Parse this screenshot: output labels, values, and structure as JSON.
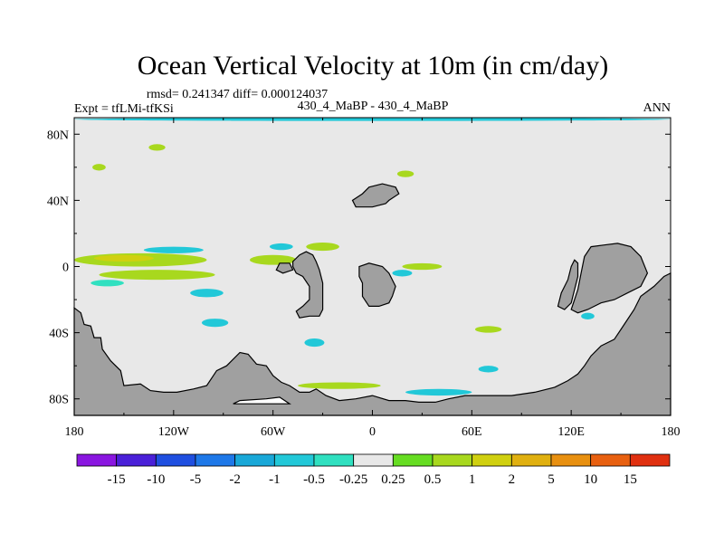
{
  "chart_data": {
    "type": "heatmap",
    "projection": "cylindrical-equidistant",
    "title": "Ocean Vertical Velocity at 10m (in cm/day)",
    "stats_text": "rmsd= 0.241347 diff= 0.000124037",
    "left_label": "Expt = tfLMi-tfKSi",
    "center_label": "430_4_MaBP - 430_4_MaBP",
    "right_label": "ANN",
    "lon_range": [
      -180,
      180
    ],
    "lat_range": [
      -90,
      90
    ],
    "x_ticks": [
      {
        "value": -180,
        "label": "180"
      },
      {
        "value": -120,
        "label": "120W"
      },
      {
        "value": -60,
        "label": "60W"
      },
      {
        "value": 0,
        "label": "0"
      },
      {
        "value": 60,
        "label": "60E"
      },
      {
        "value": 120,
        "label": "120E"
      },
      {
        "value": 180,
        "label": "180"
      }
    ],
    "y_ticks": [
      {
        "value": 80,
        "label": "80N"
      },
      {
        "value": 40,
        "label": "40N"
      },
      {
        "value": 0,
        "label": "0"
      },
      {
        "value": -40,
        "label": "40S"
      },
      {
        "value": -80,
        "label": "80S"
      }
    ],
    "background_class": "-0.25 to 0.25",
    "land_color": "#a0a0a0",
    "colorbar": {
      "colors": [
        "#8a16e0",
        "#4a20d8",
        "#1f4fe0",
        "#1e78e8",
        "#19a8d8",
        "#22c8d8",
        "#30e0c0",
        "#e8e8e8",
        "#66dd22",
        "#a8d81e",
        "#d0d010",
        "#e0b010",
        "#e89010",
        "#e86010",
        "#e03010"
      ],
      "labels": [
        "-15",
        "-10",
        "-5",
        "-2",
        "-1",
        "-0.5",
        "-0.25",
        "0.25",
        "0.5",
        "1",
        "2",
        "5",
        "10",
        "15"
      ]
    },
    "land": [
      {
        "name": "antarctica",
        "points": [
          [
            -180,
            -90
          ],
          [
            -180,
            -25
          ],
          [
            -176,
            -28
          ],
          [
            -174,
            -35
          ],
          [
            -170,
            -36
          ],
          [
            -168,
            -43
          ],
          [
            -164,
            -43
          ],
          [
            -163,
            -50
          ],
          [
            -158,
            -57
          ],
          [
            -152,
            -63
          ],
          [
            -150,
            -72
          ],
          [
            -140,
            -71
          ],
          [
            -134,
            -75
          ],
          [
            -126,
            -76
          ],
          [
            -118,
            -76
          ],
          [
            -108,
            -74
          ],
          [
            -100,
            -72
          ],
          [
            -94,
            -63
          ],
          [
            -88,
            -60
          ],
          [
            -80,
            -52
          ],
          [
            -75,
            -53
          ],
          [
            -70,
            -59
          ],
          [
            -64,
            -60
          ],
          [
            -60,
            -66
          ],
          [
            -55,
            -70
          ],
          [
            -50,
            -72
          ],
          [
            -44,
            -76
          ],
          [
            -38,
            -76
          ],
          [
            -34,
            -74
          ],
          [
            -28,
            -78
          ],
          [
            -20,
            -81
          ],
          [
            -10,
            -80
          ],
          [
            0,
            -78
          ],
          [
            10,
            -81
          ],
          [
            20,
            -81
          ],
          [
            28,
            -82
          ],
          [
            38,
            -82
          ],
          [
            46,
            -80
          ],
          [
            56,
            -78
          ],
          [
            70,
            -78
          ],
          [
            84,
            -78
          ],
          [
            98,
            -76
          ],
          [
            110,
            -73
          ],
          [
            118,
            -69
          ],
          [
            124,
            -65
          ],
          [
            128,
            -60
          ],
          [
            132,
            -54
          ],
          [
            138,
            -48
          ],
          [
            146,
            -44
          ],
          [
            150,
            -38
          ],
          [
            154,
            -32
          ],
          [
            158,
            -26
          ],
          [
            162,
            -18
          ],
          [
            170,
            -12
          ],
          [
            176,
            -6
          ],
          [
            180,
            -4
          ],
          [
            180,
            -90
          ]
        ]
      },
      {
        "name": "southeast-land",
        "points": [
          [
            120,
            -26
          ],
          [
            124,
            -14
          ],
          [
            126,
            -4
          ],
          [
            128,
            6
          ],
          [
            132,
            12
          ],
          [
            140,
            13
          ],
          [
            148,
            14
          ],
          [
            156,
            12
          ],
          [
            162,
            6
          ],
          [
            166,
            -4
          ],
          [
            162,
            -12
          ],
          [
            154,
            -16
          ],
          [
            146,
            -20
          ],
          [
            138,
            -22
          ],
          [
            130,
            -26
          ],
          [
            124,
            -28
          ]
        ]
      },
      {
        "name": "bridge-land",
        "points": [
          [
            112,
            -24
          ],
          [
            114,
            -16
          ],
          [
            118,
            -8
          ],
          [
            120,
            0
          ],
          [
            122,
            4
          ],
          [
            124,
            2
          ],
          [
            124,
            -6
          ],
          [
            122,
            -14
          ],
          [
            120,
            -22
          ],
          [
            116,
            -26
          ]
        ]
      },
      {
        "name": "central-peninsula",
        "points": [
          [
            -48,
            3
          ],
          [
            -44,
            7
          ],
          [
            -40,
            9
          ],
          [
            -36,
            7
          ],
          [
            -34,
            3
          ],
          [
            -32,
            -2
          ],
          [
            -30,
            -10
          ],
          [
            -30,
            -18
          ],
          [
            -30,
            -26
          ],
          [
            -32,
            -30
          ],
          [
            -38,
            -30
          ],
          [
            -44,
            -31
          ],
          [
            -46,
            -27
          ],
          [
            -42,
            -24
          ],
          [
            -38,
            -20
          ],
          [
            -38,
            -12
          ],
          [
            -42,
            -6
          ],
          [
            -46,
            -4
          ],
          [
            -48,
            0
          ]
        ]
      },
      {
        "name": "central-island",
        "points": [
          [
            -8,
            -6
          ],
          [
            -6,
            -10
          ],
          [
            -6,
            -18
          ],
          [
            -2,
            -24
          ],
          [
            4,
            -24
          ],
          [
            10,
            -22
          ],
          [
            12,
            -18
          ],
          [
            14,
            -12
          ],
          [
            10,
            -4
          ],
          [
            6,
            0
          ],
          [
            -2,
            2
          ],
          [
            -8,
            0
          ]
        ]
      },
      {
        "name": "north-continent",
        "points": [
          [
            -12,
            40
          ],
          [
            -6,
            44
          ],
          [
            -2,
            48
          ],
          [
            6,
            50
          ],
          [
            14,
            48
          ],
          [
            16,
            44
          ],
          [
            10,
            40
          ],
          [
            8,
            38
          ],
          [
            0,
            36
          ],
          [
            -10,
            36
          ]
        ]
      },
      {
        "name": "west-islet",
        "points": [
          [
            -56,
            2
          ],
          [
            -50,
            2
          ],
          [
            -48,
            -2
          ],
          [
            -54,
            -4
          ],
          [
            -58,
            -2
          ]
        ]
      },
      {
        "name": "ice-shelf",
        "points": [
          [
            -84,
            -83
          ],
          [
            -80,
            -81
          ],
          [
            -64,
            -80
          ],
          [
            -56,
            -79
          ],
          [
            -50,
            -83
          ]
        ]
      }
    ],
    "anomaly_blobs": [
      {
        "name": "equatorial-band",
        "class": "0.5",
        "lon": -140,
        "lat": 4,
        "rx": 40,
        "ry": 4
      },
      {
        "name": "equatorial-band-core",
        "class": "1",
        "lon": -150,
        "lat": 5,
        "rx": 18,
        "ry": 2
      },
      {
        "name": "south-equatorial-green",
        "class": "0.5",
        "lon": -130,
        "lat": -5,
        "rx": 35,
        "ry": 3
      },
      {
        "name": "north-equatorial-cyan",
        "class": "-0.5",
        "lon": -120,
        "lat": 10,
        "rx": 18,
        "ry": 2
      },
      {
        "name": "south-equatorial-cyan",
        "class": "-0.25",
        "lon": -160,
        "lat": -10,
        "rx": 10,
        "ry": 2
      },
      {
        "name": "east-pacific-cyan",
        "class": "-0.5",
        "lon": -100,
        "lat": -16,
        "rx": 10,
        "ry": 2.5
      },
      {
        "name": "east-pacific-green",
        "class": "0.5",
        "lon": -60,
        "lat": 4,
        "rx": 14,
        "ry": 3
      },
      {
        "name": "atlantic-north-green",
        "class": "0.5",
        "lon": -30,
        "lat": 12,
        "rx": 10,
        "ry": 2.5
      },
      {
        "name": "atlantic-cyan",
        "class": "-0.5",
        "lon": -55,
        "lat": 12,
        "rx": 7,
        "ry": 2
      },
      {
        "name": "central-green",
        "class": "0.5",
        "lon": 30,
        "lat": 0,
        "rx": 12,
        "ry": 2
      },
      {
        "name": "central-cyan",
        "class": "-0.5",
        "lon": 18,
        "lat": -4,
        "rx": 6,
        "ry": 2
      },
      {
        "name": "south-pacific-cyan-1",
        "class": "-0.5",
        "lon": -95,
        "lat": -34,
        "rx": 8,
        "ry": 2.5
      },
      {
        "name": "south-pacific-cyan-2",
        "class": "-0.5",
        "lon": -35,
        "lat": -46,
        "rx": 6,
        "ry": 2.5
      },
      {
        "name": "south-green-1",
        "class": "0.5",
        "lon": 70,
        "lat": -38,
        "rx": 8,
        "ry": 2
      },
      {
        "name": "south-cyan-1",
        "class": "-0.5",
        "lon": 70,
        "lat": -62,
        "rx": 6,
        "ry": 2
      },
      {
        "name": "north-pacific-green-1",
        "class": "0.5",
        "lon": -165,
        "lat": 60,
        "rx": 4,
        "ry": 2
      },
      {
        "name": "north-pacific-green-2",
        "class": "0.5",
        "lon": -130,
        "lat": 72,
        "rx": 5,
        "ry": 2
      },
      {
        "name": "north-atlantic-green",
        "class": "0.5",
        "lon": 20,
        "lat": 56,
        "rx": 5,
        "ry": 2
      },
      {
        "name": "arctic-cyan",
        "class": "-0.5",
        "lon": 0,
        "lat": 89,
        "rx": 180,
        "ry": 1
      },
      {
        "name": "southern-ring-green",
        "class": "0.5",
        "lon": -20,
        "lat": -72,
        "rx": 25,
        "ry": 2
      },
      {
        "name": "southern-ring-cyan",
        "class": "-0.5",
        "lon": 40,
        "lat": -76,
        "rx": 20,
        "ry": 2
      },
      {
        "name": "far-east-green",
        "class": "0.5",
        "lon": 140,
        "lat": 6,
        "rx": 8,
        "ry": 2
      },
      {
        "name": "far-east-cyan",
        "class": "-0.5",
        "lon": 150,
        "lat": -4,
        "rx": 6,
        "ry": 2
      },
      {
        "name": "east-cyan-2",
        "class": "-0.5",
        "lon": 130,
        "lat": -30,
        "rx": 4,
        "ry": 2
      }
    ]
  }
}
